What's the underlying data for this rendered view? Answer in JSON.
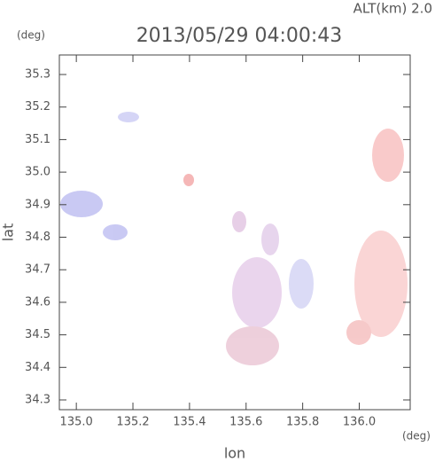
{
  "chart_data": {
    "type": "map",
    "title": "2013/05/29 04:00:43",
    "altitude_label": "ALT(km) 2.0",
    "x_label": "lon",
    "y_label": "lat",
    "x_unit": "(deg)",
    "y_unit": "(deg)",
    "xlim": [
      134.94,
      136.18
    ],
    "ylim": [
      34.27,
      35.36
    ],
    "xticks": [
      {
        "value": 135,
        "label": "135.0"
      },
      135.2,
      135.4,
      135.6,
      135.8,
      {
        "value": 136,
        "label": "136.0"
      }
    ],
    "yticks": [
      34.3,
      34.4,
      34.5,
      34.6,
      34.7,
      34.8,
      34.9,
      {
        "value": 35,
        "label": "35.0"
      },
      35.1,
      35.2,
      35.3
    ]
  }
}
